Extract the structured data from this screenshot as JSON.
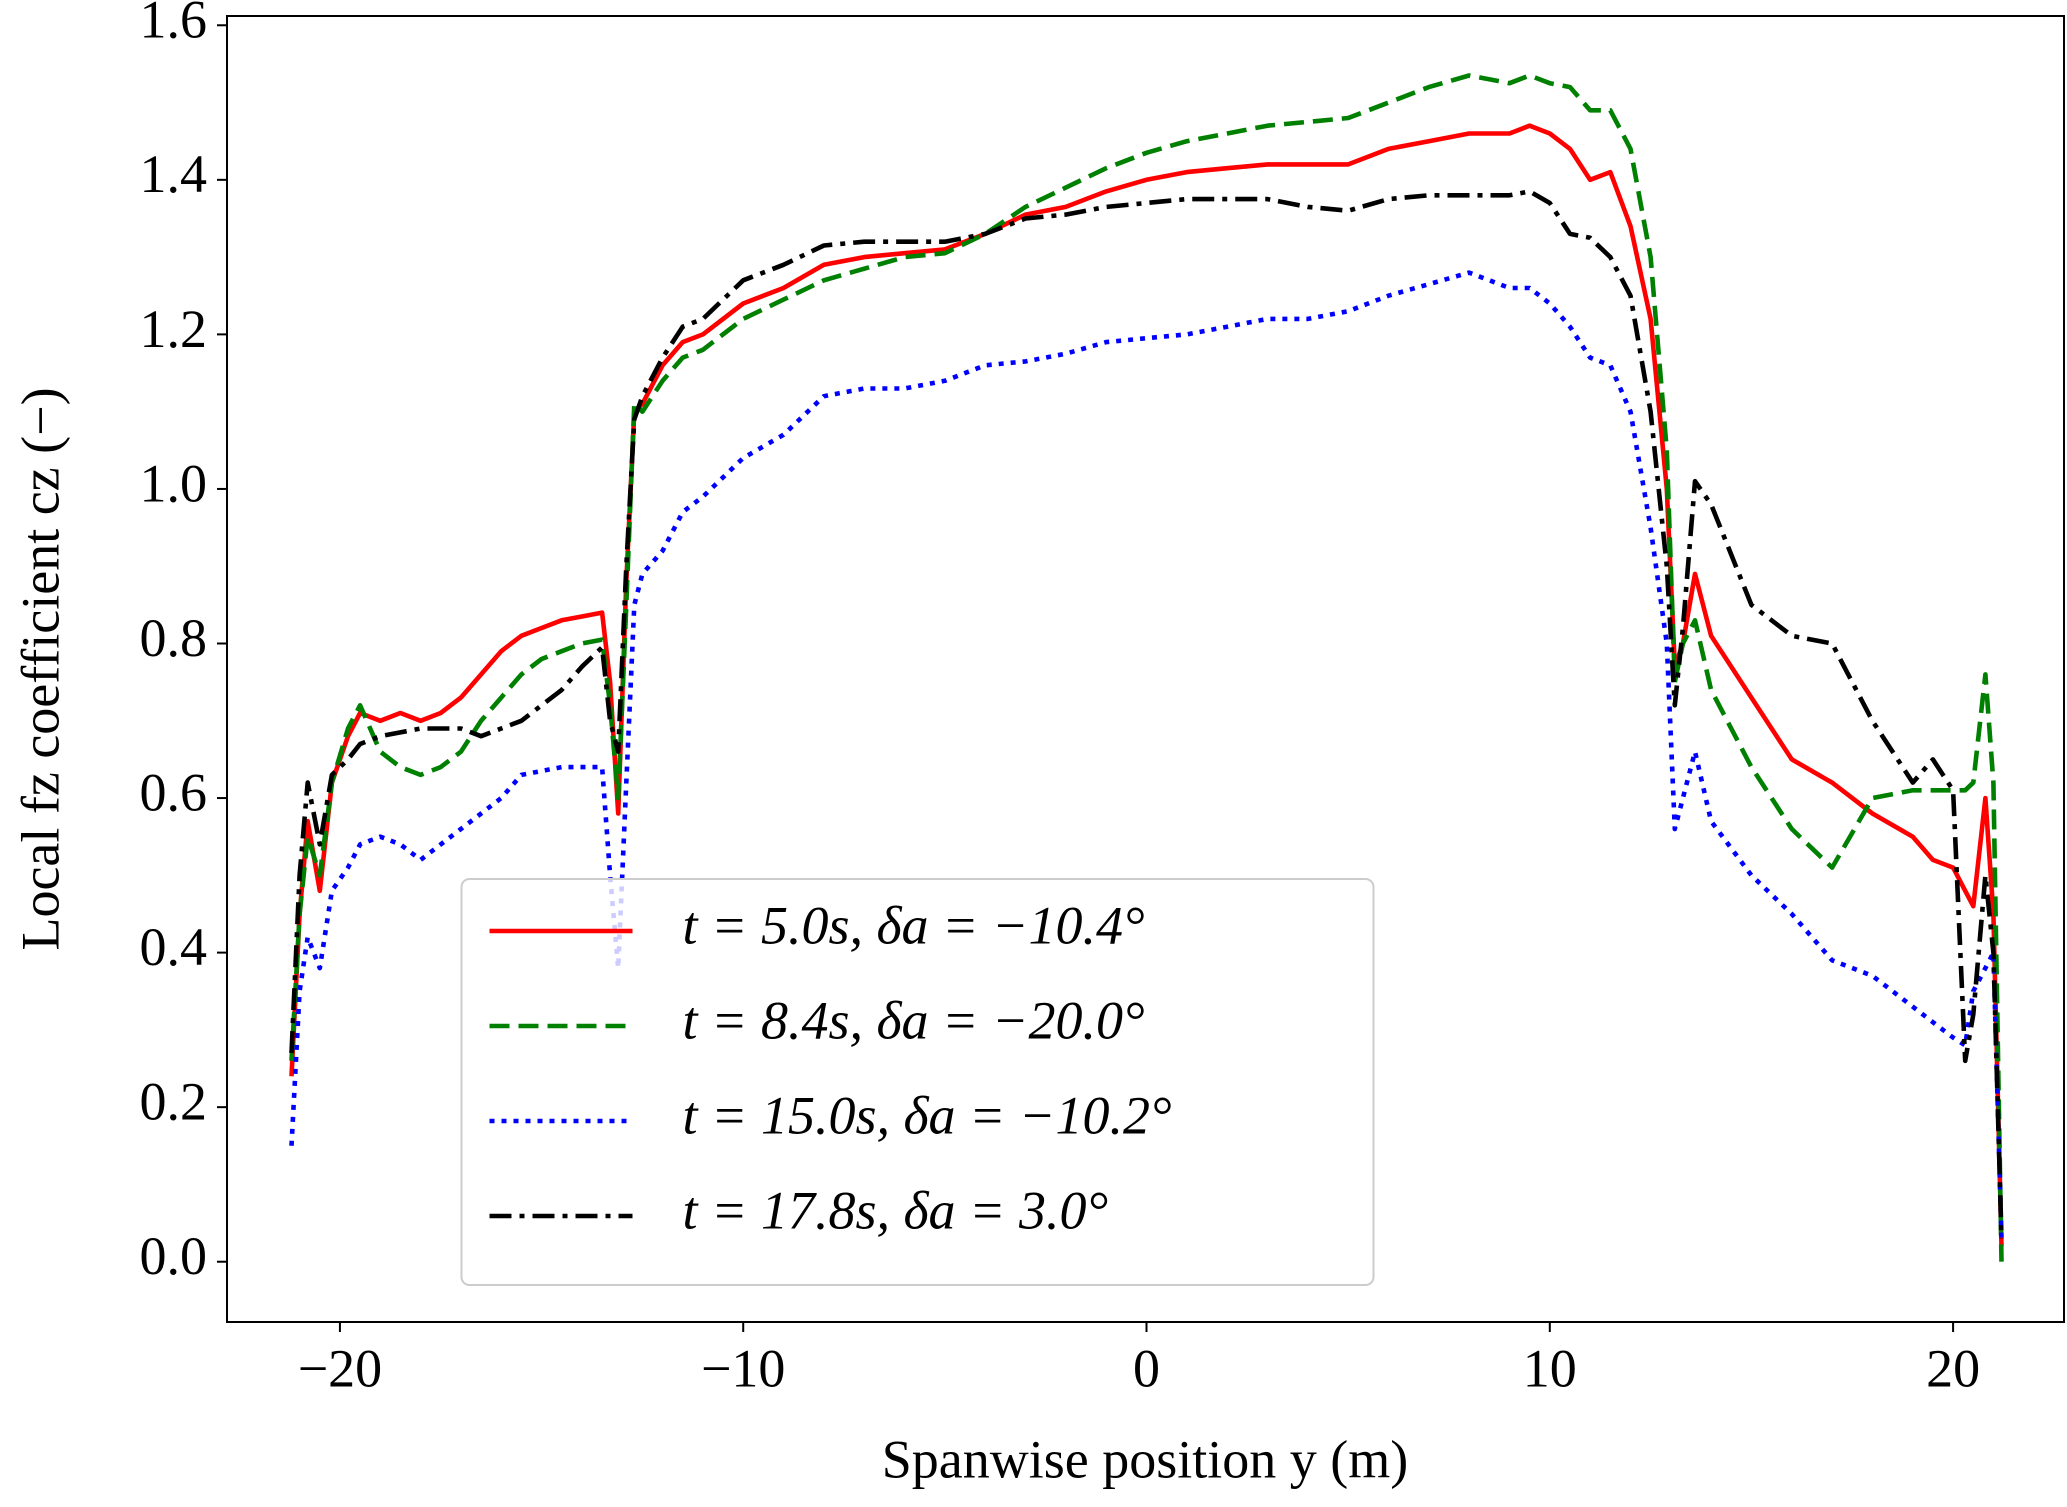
{
  "chart_data": {
    "type": "line",
    "xlabel": "Spanwise position y (m)",
    "ylabel": "Local fz coefficient cz (−)",
    "x": [
      -21.2,
      -21.0,
      -20.8,
      -20.5,
      -20.2,
      -19.8,
      -19.5,
      -19.0,
      -18.5,
      -18.0,
      -17.5,
      -17.0,
      -16.5,
      -16.0,
      -15.5,
      -15.0,
      -14.5,
      -14.0,
      -13.5,
      -13.3,
      -13.1,
      -12.9,
      -12.7,
      -12.5,
      -12.0,
      -11.5,
      -11.0,
      -10.0,
      -9.0,
      -8.0,
      -7.0,
      -6.0,
      -5.0,
      -4.0,
      -3.0,
      -2.0,
      -1.0,
      0,
      1,
      2,
      3,
      4,
      5,
      6,
      7,
      8,
      9,
      9.5,
      10,
      10.5,
      11,
      11.5,
      12,
      12.5,
      12.9,
      13.1,
      13.3,
      13.6,
      14,
      15,
      16,
      17,
      18,
      19,
      19.5,
      20,
      20.3,
      20.5,
      20.8,
      21.0,
      21.2
    ],
    "series": [
      {
        "name": "t = 5.0s, δa = −10.4°",
        "color": "#ff0000",
        "linestyle": "solid",
        "values": [
          0.24,
          0.45,
          0.57,
          0.48,
          0.62,
          0.68,
          0.71,
          0.7,
          0.71,
          0.7,
          0.71,
          0.73,
          0.76,
          0.79,
          0.81,
          0.82,
          0.83,
          0.835,
          0.84,
          0.75,
          0.58,
          0.88,
          1.1,
          1.11,
          1.16,
          1.19,
          1.2,
          1.24,
          1.26,
          1.29,
          1.3,
          1.305,
          1.31,
          1.33,
          1.355,
          1.365,
          1.385,
          1.4,
          1.41,
          1.415,
          1.42,
          1.42,
          1.42,
          1.44,
          1.45,
          1.46,
          1.46,
          1.47,
          1.46,
          1.44,
          1.4,
          1.41,
          1.34,
          1.22,
          1.0,
          0.77,
          0.8,
          0.89,
          0.81,
          0.73,
          0.65,
          0.62,
          0.58,
          0.55,
          0.52,
          0.51,
          0.48,
          0.46,
          0.6,
          0.45,
          0.02
        ]
      },
      {
        "name": "t = 8.4s, δa = −20.0°",
        "color": "#008000",
        "linestyle": "dashed",
        "values": [
          0.26,
          0.45,
          0.55,
          0.5,
          0.62,
          0.69,
          0.72,
          0.66,
          0.64,
          0.63,
          0.64,
          0.66,
          0.7,
          0.73,
          0.76,
          0.78,
          0.79,
          0.8,
          0.805,
          0.72,
          0.6,
          0.85,
          1.11,
          1.1,
          1.14,
          1.17,
          1.18,
          1.22,
          1.245,
          1.27,
          1.285,
          1.3,
          1.305,
          1.33,
          1.365,
          1.39,
          1.415,
          1.435,
          1.45,
          1.46,
          1.47,
          1.475,
          1.48,
          1.5,
          1.52,
          1.535,
          1.525,
          1.535,
          1.525,
          1.52,
          1.49,
          1.49,
          1.44,
          1.3,
          1.05,
          0.75,
          0.8,
          0.83,
          0.74,
          0.64,
          0.56,
          0.51,
          0.6,
          0.61,
          0.61,
          0.61,
          0.61,
          0.62,
          0.76,
          0.62,
          0.0
        ]
      },
      {
        "name": "t = 15.0s, δa = −10.2°",
        "color": "#0000ff",
        "linestyle": "dotted",
        "values": [
          0.15,
          0.35,
          0.42,
          0.38,
          0.48,
          0.51,
          0.54,
          0.55,
          0.54,
          0.52,
          0.54,
          0.56,
          0.58,
          0.6,
          0.63,
          0.635,
          0.64,
          0.64,
          0.64,
          0.5,
          0.38,
          0.62,
          0.85,
          0.89,
          0.92,
          0.97,
          0.99,
          1.04,
          1.07,
          1.12,
          1.13,
          1.13,
          1.14,
          1.16,
          1.165,
          1.175,
          1.19,
          1.195,
          1.2,
          1.21,
          1.22,
          1.22,
          1.23,
          1.25,
          1.265,
          1.28,
          1.26,
          1.26,
          1.24,
          1.21,
          1.17,
          1.16,
          1.1,
          0.95,
          0.8,
          0.56,
          0.6,
          0.66,
          0.57,
          0.5,
          0.45,
          0.39,
          0.37,
          0.33,
          0.31,
          0.29,
          0.28,
          0.35,
          0.38,
          0.4,
          0.03
        ]
      },
      {
        "name": "t = 17.8s, δa = 3.0°",
        "color": "#000000",
        "linestyle": "dashdot",
        "values": [
          0.27,
          0.5,
          0.62,
          0.54,
          0.63,
          0.65,
          0.67,
          0.68,
          0.685,
          0.69,
          0.69,
          0.69,
          0.68,
          0.69,
          0.7,
          0.72,
          0.74,
          0.77,
          0.795,
          0.7,
          0.66,
          0.9,
          1.09,
          1.12,
          1.17,
          1.21,
          1.22,
          1.27,
          1.29,
          1.315,
          1.32,
          1.32,
          1.32,
          1.33,
          1.35,
          1.355,
          1.365,
          1.37,
          1.375,
          1.375,
          1.375,
          1.365,
          1.36,
          1.375,
          1.38,
          1.38,
          1.38,
          1.385,
          1.37,
          1.33,
          1.325,
          1.3,
          1.25,
          1.1,
          0.9,
          0.72,
          0.82,
          1.01,
          0.98,
          0.85,
          0.81,
          0.8,
          0.7,
          0.62,
          0.65,
          0.61,
          0.26,
          0.32,
          0.5,
          0.4,
          0.03
        ]
      }
    ],
    "xlim": [
      -22.8,
      22.75
    ],
    "xticks": [
      {
        "value": -20,
        "label": "−20"
      },
      {
        "value": -10,
        "label": "−10"
      },
      0,
      10,
      20
    ],
    "ylim": [
      -0.078,
      1.612
    ],
    "yticks": [
      {
        "value": 0,
        "label": "0.0"
      },
      0.2,
      0.4,
      0.6,
      0.8,
      {
        "value": 1,
        "label": "1.0"
      },
      1.2,
      1.4,
      1.6
    ],
    "grid": false,
    "legend": "lower center"
  }
}
